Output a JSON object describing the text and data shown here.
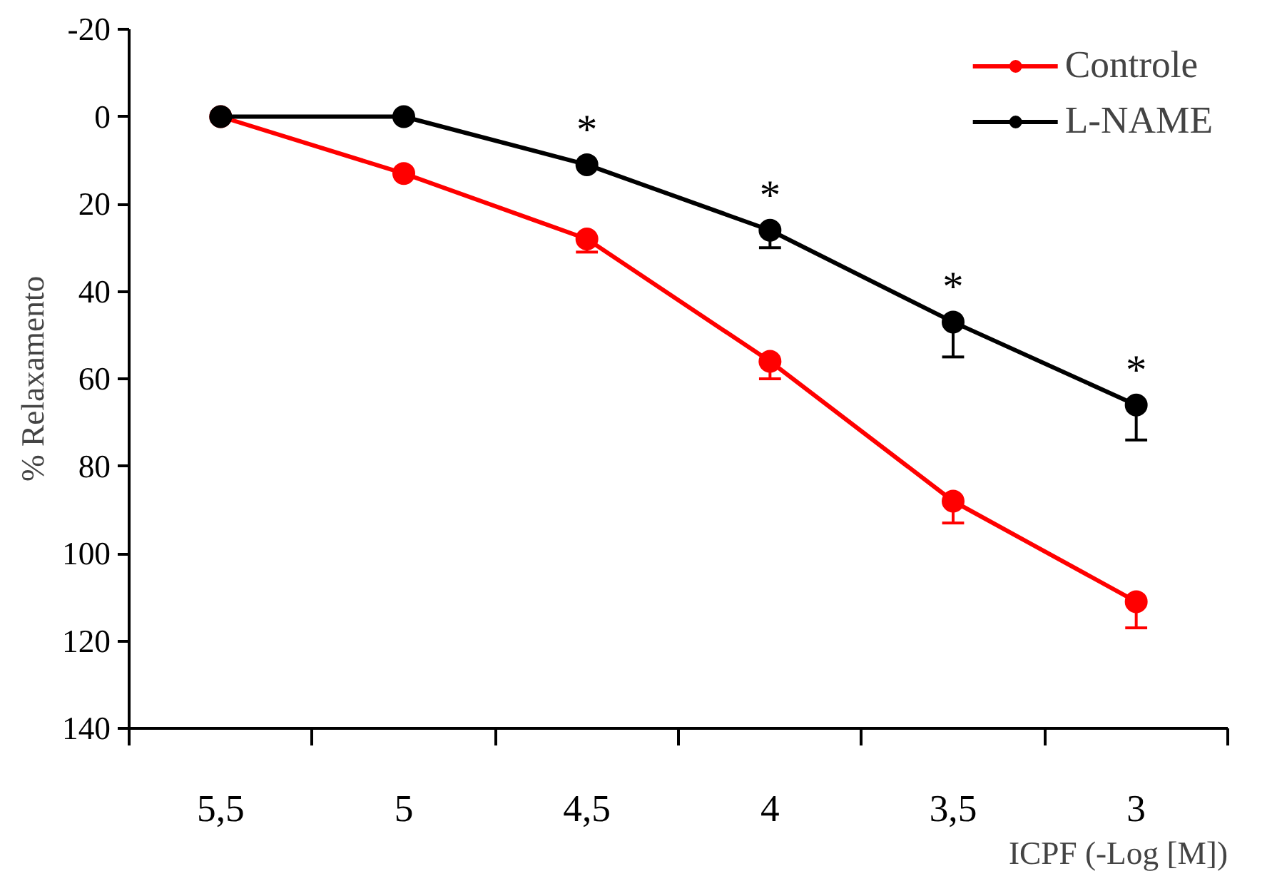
{
  "chart_data": {
    "type": "line",
    "xlabel": "ICPF (-Log [M])",
    "ylabel": "% Relaxamento",
    "categories": [
      "5,5",
      "5",
      "4,5",
      "4",
      "3,5",
      "3"
    ],
    "ylim": [
      140,
      -20
    ],
    "yticks": [
      -20,
      0,
      20,
      40,
      60,
      80,
      100,
      120,
      140
    ],
    "grid": false,
    "legend": "top right",
    "marker": "circle",
    "line_style": "solid",
    "series": [
      {
        "name": "Controle",
        "color": "#ff0000",
        "values": [
          0,
          13,
          28,
          56,
          88,
          111
        ],
        "errors": [
          null,
          null,
          [
            28,
            31
          ],
          [
            56,
            60
          ],
          [
            88,
            93
          ],
          [
            111,
            117
          ]
        ]
      },
      {
        "name": "L-NAME",
        "color": "#000000",
        "values": [
          0,
          0,
          11,
          26,
          47,
          66
        ],
        "errors": [
          null,
          null,
          null,
          [
            26,
            30
          ],
          [
            47,
            55
          ],
          [
            66,
            74
          ]
        ]
      }
    ],
    "annotations": [
      {
        "text": "*",
        "x": "4,5",
        "y": 11
      },
      {
        "text": "*",
        "x": "4",
        "y": 26
      },
      {
        "text": "*",
        "x": "3,5",
        "y": 47
      },
      {
        "text": "*",
        "x": "3",
        "y": 66
      }
    ]
  }
}
